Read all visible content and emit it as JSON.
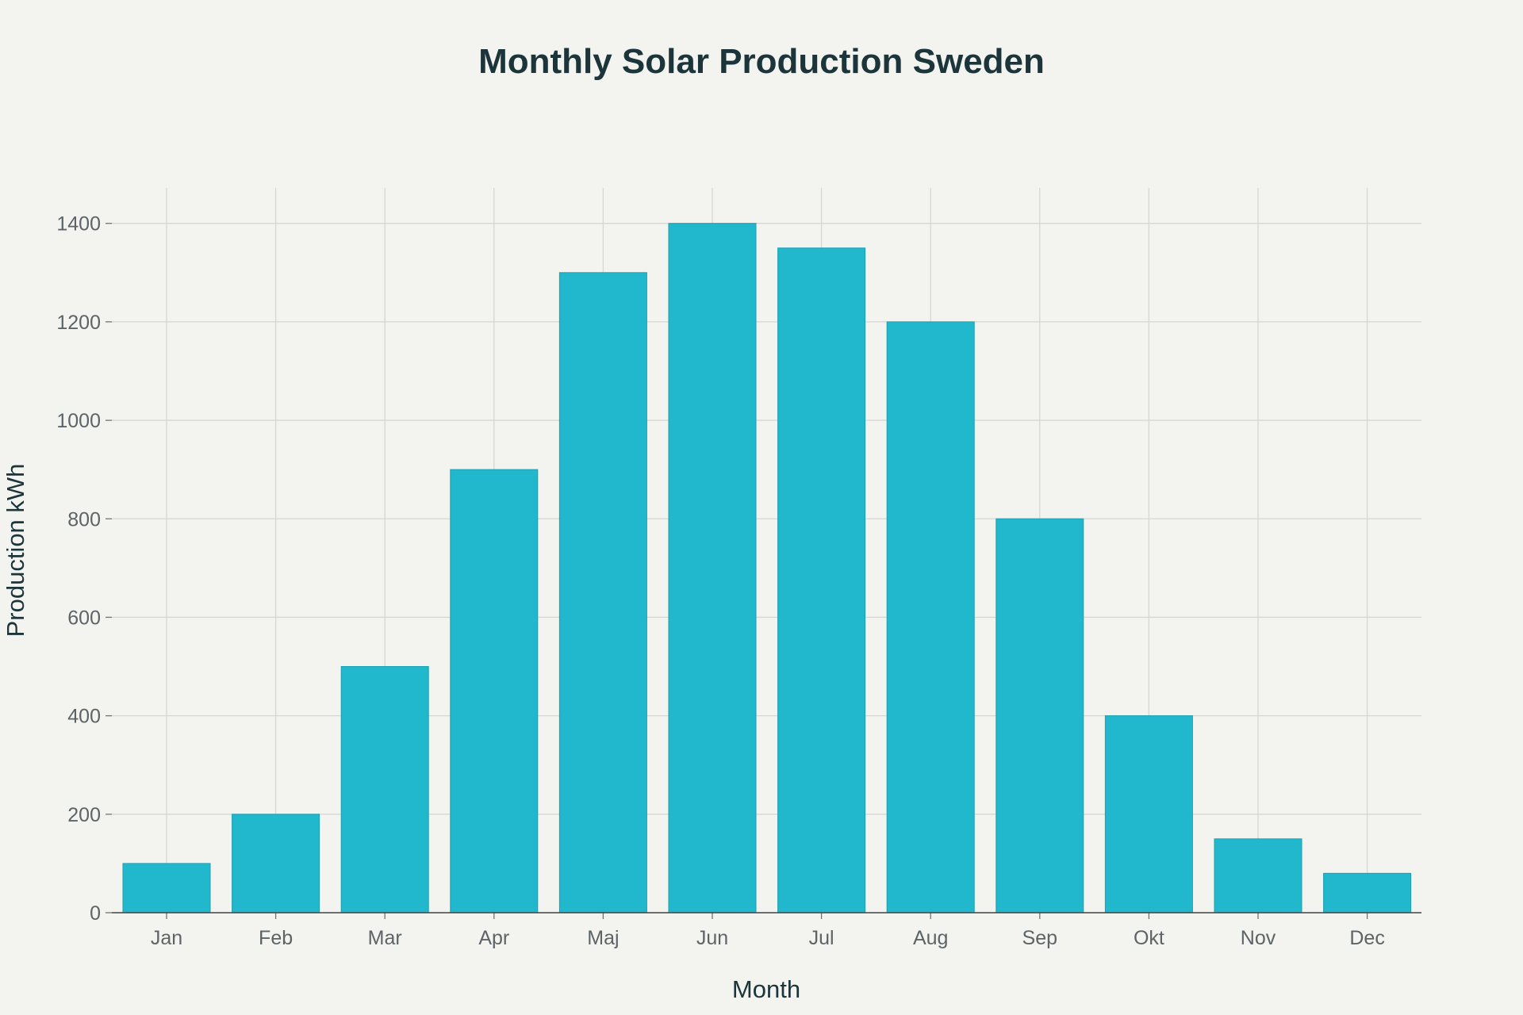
{
  "chart_data": {
    "type": "bar",
    "title": "Monthly Solar Production Sweden",
    "xlabel": "Month",
    "ylabel": "Production kWh",
    "categories": [
      "Jan",
      "Feb",
      "Mar",
      "Apr",
      "Maj",
      "Jun",
      "Jul",
      "Aug",
      "Sep",
      "Okt",
      "Nov",
      "Dec"
    ],
    "values": [
      100,
      200,
      500,
      900,
      1300,
      1400,
      1350,
      1200,
      800,
      400,
      150,
      80
    ],
    "ylim": [
      0,
      1472
    ],
    "yticks": [
      0,
      200,
      400,
      600,
      800,
      1000,
      1200,
      1400
    ],
    "grid": true,
    "legend": "none",
    "colors": {
      "bar": "#21b8cd",
      "background": "#f3f3ef"
    }
  }
}
